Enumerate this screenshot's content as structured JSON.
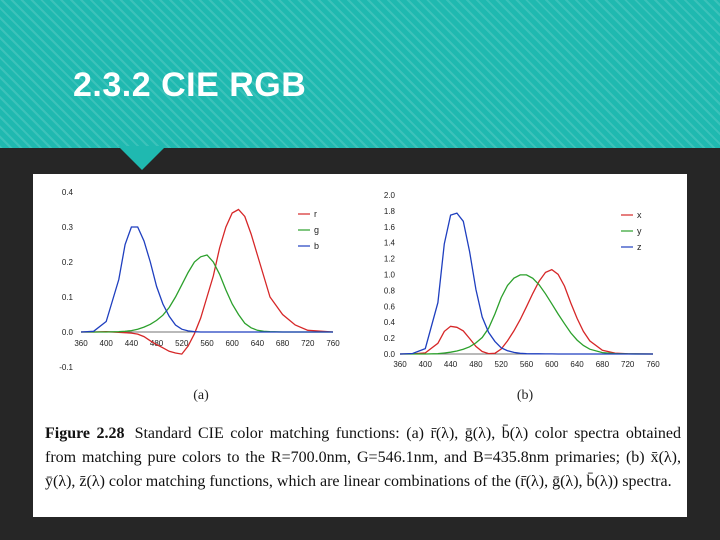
{
  "slide": {
    "title": "2.3.2 CIE RGB",
    "colors": {
      "banner": "#1fb9b0",
      "background": "#262626"
    }
  },
  "figure": {
    "caption_label": "Figure 2.28",
    "caption_text": "Standard CIE color matching functions: (a) r̄(λ), ḡ(λ), b̄(λ) color spectra obtained from matching pure colors to the R=700.0nm, G=546.1nm, and B=435.8nm primaries; (b) x̄(λ), ȳ(λ), z̄(λ) color matching functions, which are linear combinations of the (r̄(λ), ḡ(λ), b̄(λ)) spectra."
  },
  "chart_data": [
    {
      "type": "line",
      "subtitle": "(a)",
      "x_ticks": [
        "360",
        "400",
        "440",
        "480",
        "520",
        "560",
        "600",
        "640",
        "680",
        "720",
        "760"
      ],
      "y_ticks": [
        "0.4",
        "0.3",
        "0.2",
        "0.1",
        "0.0",
        "-0.1"
      ],
      "xlim": [
        360,
        760
      ],
      "ylim": [
        -0.1,
        0.4
      ],
      "legend_position": "top-right",
      "x": [
        360,
        380,
        400,
        420,
        430,
        440,
        450,
        460,
        470,
        480,
        490,
        500,
        510,
        520,
        530,
        540,
        550,
        560,
        570,
        580,
        590,
        600,
        610,
        620,
        630,
        640,
        650,
        660,
        680,
        700,
        720,
        760
      ],
      "series": [
        {
          "name": "r",
          "color": "#d62728",
          "values": [
            0,
            0,
            0.001,
            -0.001,
            -0.002,
            -0.003,
            -0.006,
            -0.013,
            -0.025,
            -0.036,
            -0.045,
            -0.055,
            -0.06,
            -0.063,
            -0.04,
            -0.005,
            0.04,
            0.1,
            0.16,
            0.24,
            0.3,
            0.34,
            0.35,
            0.33,
            0.28,
            0.22,
            0.16,
            0.1,
            0.05,
            0.02,
            0.005,
            0
          ]
        },
        {
          "name": "g",
          "color": "#2ca02c",
          "values": [
            0,
            0,
            0,
            0.001,
            0.002,
            0.004,
            0.008,
            0.014,
            0.022,
            0.033,
            0.048,
            0.07,
            0.1,
            0.135,
            0.17,
            0.2,
            0.215,
            0.22,
            0.2,
            0.165,
            0.12,
            0.08,
            0.05,
            0.025,
            0.012,
            0.005,
            0.002,
            0.001,
            0,
            0,
            0,
            0
          ]
        },
        {
          "name": "b",
          "color": "#1f3fbf",
          "values": [
            0,
            0.002,
            0.03,
            0.15,
            0.25,
            0.3,
            0.3,
            0.26,
            0.2,
            0.13,
            0.08,
            0.045,
            0.02,
            0.008,
            0.003,
            0.001,
            0,
            0,
            0,
            0,
            0,
            0,
            0,
            0,
            0,
            0,
            0,
            0,
            0,
            0,
            0,
            0
          ]
        }
      ]
    },
    {
      "type": "line",
      "subtitle": "(b)",
      "x_ticks": [
        "360",
        "400",
        "440",
        "480",
        "520",
        "560",
        "600",
        "640",
        "680",
        "720",
        "760"
      ],
      "y_ticks": [
        "2.0",
        "1.8",
        "1.6",
        "1.4",
        "1.2",
        "1.0",
        "0.8",
        "0.6",
        "0.4",
        "0.2",
        "0.0"
      ],
      "xlim": [
        360,
        760
      ],
      "ylim": [
        0,
        2.0
      ],
      "legend_position": "top-right",
      "x": [
        360,
        380,
        400,
        420,
        430,
        440,
        450,
        460,
        470,
        480,
        490,
        500,
        510,
        520,
        530,
        540,
        550,
        560,
        570,
        580,
        590,
        600,
        610,
        620,
        630,
        640,
        650,
        660,
        680,
        700,
        720,
        760
      ],
      "series": [
        {
          "name": "x",
          "color": "#d62728",
          "values": [
            0,
            0.001,
            0.014,
            0.134,
            0.284,
            0.348,
            0.336,
            0.291,
            0.195,
            0.096,
            0.032,
            0.005,
            0.009,
            0.063,
            0.165,
            0.29,
            0.433,
            0.595,
            0.762,
            0.916,
            1.026,
            1.062,
            1.003,
            0.854,
            0.642,
            0.448,
            0.284,
            0.165,
            0.047,
            0.011,
            0.003,
            0
          ]
        },
        {
          "name": "y",
          "color": "#2ca02c",
          "values": [
            0,
            0,
            0.0004,
            0.004,
            0.012,
            0.023,
            0.038,
            0.06,
            0.091,
            0.139,
            0.208,
            0.323,
            0.503,
            0.71,
            0.862,
            0.954,
            0.995,
            0.995,
            0.952,
            0.87,
            0.757,
            0.631,
            0.503,
            0.381,
            0.265,
            0.175,
            0.107,
            0.061,
            0.017,
            0.004,
            0.001,
            0
          ]
        },
        {
          "name": "z",
          "color": "#1f3fbf",
          "values": [
            0,
            0.006,
            0.068,
            0.646,
            1.386,
            1.747,
            1.772,
            1.669,
            1.288,
            0.813,
            0.465,
            0.272,
            0.158,
            0.078,
            0.042,
            0.02,
            0.009,
            0.004,
            0.002,
            0.002,
            0.001,
            0.001,
            0,
            0,
            0,
            0,
            0,
            0,
            0,
            0,
            0,
            0
          ]
        }
      ]
    }
  ]
}
